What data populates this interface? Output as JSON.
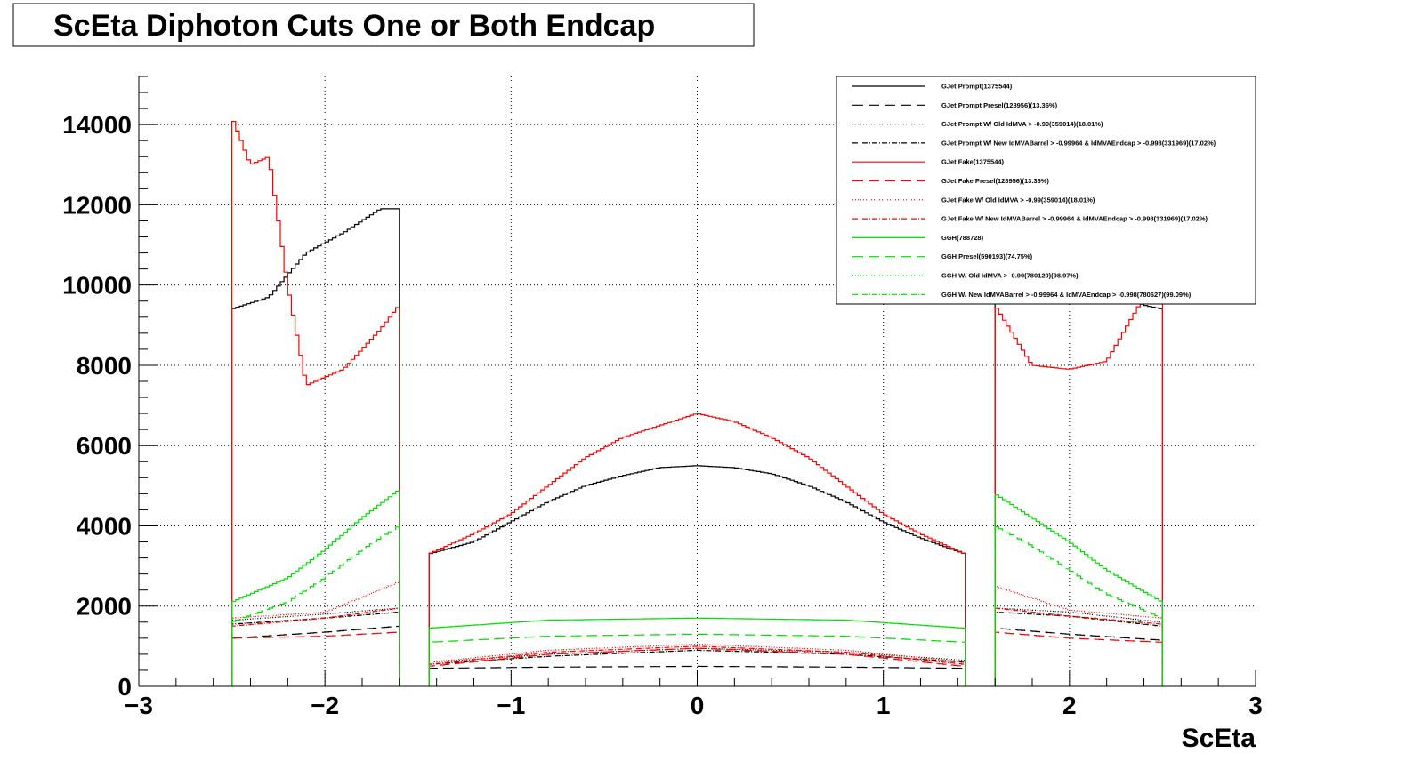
{
  "chart_data": {
    "type": "line",
    "title": "ScEta Diphoton Cuts One or Both Endcap",
    "xlabel": "ScEta",
    "ylabel": "",
    "xlim": [
      -3,
      3
    ],
    "ylim": [
      0,
      15200
    ],
    "grid": true,
    "legend_position": "top-right",
    "x_ticks": [
      -3,
      -2,
      -1,
      0,
      1,
      2,
      3
    ],
    "x_tick_labels": [
      "−3",
      "−2",
      "−1",
      "0",
      "1",
      "2",
      "3"
    ],
    "y_ticks": [
      0,
      2000,
      4000,
      6000,
      8000,
      10000,
      12000,
      14000
    ],
    "y_tick_labels": [
      "0",
      "2000",
      "4000",
      "6000",
      "8000",
      "10000",
      "12000",
      "14000"
    ],
    "series": [
      {
        "name": "GJet Prompt(1375544)",
        "color": "#000000",
        "dash": "solid",
        "endcap_left": [
          [
            -2.5,
            9400
          ],
          [
            -2.3,
            9700
          ],
          [
            -2.1,
            10800
          ],
          [
            -1.9,
            11300
          ],
          [
            -1.7,
            11900
          ],
          [
            -1.6,
            11900
          ]
        ],
        "barrel": [
          [
            -1.44,
            3300
          ],
          [
            -1.2,
            3600
          ],
          [
            -1.0,
            4100
          ],
          [
            -0.8,
            4600
          ],
          [
            -0.6,
            5000
          ],
          [
            -0.4,
            5250
          ],
          [
            -0.2,
            5450
          ],
          [
            0.0,
            5500
          ],
          [
            0.2,
            5450
          ],
          [
            0.4,
            5300
          ],
          [
            0.6,
            5000
          ],
          [
            0.8,
            4600
          ],
          [
            1.0,
            4100
          ],
          [
            1.2,
            3700
          ],
          [
            1.44,
            3300
          ]
        ],
        "endcap_right": [
          [
            1.6,
            10500
          ],
          [
            1.8,
            10600
          ],
          [
            2.0,
            10300
          ],
          [
            2.2,
            10000
          ],
          [
            2.4,
            9500
          ],
          [
            2.5,
            9400
          ]
        ]
      },
      {
        "name": "GJet Prompt Presel(128956)(13.36%)",
        "color": "#000000",
        "dash": "dashed",
        "endcap_left": [
          [
            -2.5,
            1200
          ],
          [
            -2.0,
            1350
          ],
          [
            -1.6,
            1500
          ]
        ],
        "barrel": [
          [
            -1.44,
            450
          ],
          [
            -0.8,
            480
          ],
          [
            0.0,
            500
          ],
          [
            0.8,
            480
          ],
          [
            1.44,
            450
          ]
        ],
        "endcap_right": [
          [
            1.6,
            1450
          ],
          [
            2.0,
            1300
          ],
          [
            2.5,
            1150
          ]
        ]
      },
      {
        "name": "GJet Prompt W/ Old IdMVA > -0.99(359014)(18.01%)",
        "color": "#000000",
        "dash": "dotted",
        "endcap_left": [
          [
            -2.5,
            1650
          ],
          [
            -2.0,
            1800
          ],
          [
            -1.6,
            1950
          ]
        ],
        "barrel": [
          [
            -1.44,
            600
          ],
          [
            -0.8,
            800
          ],
          [
            0.0,
            950
          ],
          [
            0.8,
            850
          ],
          [
            1.44,
            650
          ]
        ],
        "endcap_right": [
          [
            1.6,
            1950
          ],
          [
            2.0,
            1850
          ],
          [
            2.5,
            1600
          ]
        ]
      },
      {
        "name": "GJet Prompt W/ New IdMVABarrel > -0.99964 & IdMVAEndcap > -0.998(331969)(17.02%)",
        "color": "#000000",
        "dash": "dashdot",
        "endcap_left": [
          [
            -2.5,
            1550
          ],
          [
            -2.0,
            1700
          ],
          [
            -1.6,
            1850
          ]
        ],
        "barrel": [
          [
            -1.44,
            550
          ],
          [
            -0.8,
            750
          ],
          [
            0.0,
            900
          ],
          [
            0.8,
            800
          ],
          [
            1.44,
            600
          ]
        ],
        "endcap_right": [
          [
            1.6,
            1850
          ],
          [
            2.0,
            1750
          ],
          [
            2.5,
            1500
          ]
        ]
      },
      {
        "name": "GJet Fake(1375544)",
        "color": "#ff0000",
        "dash": "solid",
        "endcap_left": [
          [
            -2.5,
            14200
          ],
          [
            -2.4,
            13000
          ],
          [
            -2.3,
            13200
          ],
          [
            -2.2,
            10000
          ],
          [
            -2.1,
            7500
          ],
          [
            -1.9,
            7900
          ],
          [
            -1.7,
            8900
          ],
          [
            -1.6,
            9500
          ]
        ],
        "barrel": [
          [
            -1.44,
            3300
          ],
          [
            -1.2,
            3800
          ],
          [
            -1.0,
            4300
          ],
          [
            -0.8,
            5000
          ],
          [
            -0.6,
            5700
          ],
          [
            -0.4,
            6200
          ],
          [
            -0.2,
            6500
          ],
          [
            0.0,
            6800
          ],
          [
            0.2,
            6600
          ],
          [
            0.4,
            6200
          ],
          [
            0.6,
            5700
          ],
          [
            0.8,
            5000
          ],
          [
            1.0,
            4300
          ],
          [
            1.2,
            3800
          ],
          [
            1.44,
            3300
          ]
        ],
        "endcap_right": [
          [
            1.6,
            9500
          ],
          [
            1.8,
            8000
          ],
          [
            2.0,
            7900
          ],
          [
            2.2,
            8100
          ],
          [
            2.4,
            9700
          ],
          [
            2.5,
            10000
          ]
        ]
      },
      {
        "name": "GJet Fake Presel(128956)(13.36%)",
        "color": "#ff0000",
        "dash": "dashed",
        "endcap_left": [
          [
            -2.5,
            1200
          ],
          [
            -2.0,
            1250
          ],
          [
            -1.6,
            1350
          ]
        ],
        "barrel": [
          [
            -1.44,
            500
          ],
          [
            -0.8,
            800
          ],
          [
            0.0,
            950
          ],
          [
            0.8,
            800
          ],
          [
            1.44,
            500
          ]
        ],
        "endcap_right": [
          [
            1.6,
            1350
          ],
          [
            2.0,
            1200
          ],
          [
            2.5,
            1100
          ]
        ]
      },
      {
        "name": "GJet Fake W/ Old IdMVA > -0.99(359014)(18.01%)",
        "color": "#ff0000",
        "dash": "dotted",
        "endcap_left": [
          [
            -2.5,
            1700
          ],
          [
            -2.0,
            1850
          ],
          [
            -1.6,
            2600
          ]
        ],
        "barrel": [
          [
            -1.44,
            600
          ],
          [
            -0.8,
            900
          ],
          [
            0.0,
            1050
          ],
          [
            0.8,
            900
          ],
          [
            1.44,
            600
          ]
        ],
        "endcap_right": [
          [
            1.6,
            2500
          ],
          [
            2.0,
            1900
          ],
          [
            2.5,
            1700
          ]
        ]
      },
      {
        "name": "GJet Fake W/ New IdMVABarrel > -0.99964 & IdMVAEndcap > -0.998(331969)(17.02%)",
        "color": "#ff0000",
        "dash": "dashdot",
        "endcap_left": [
          [
            -2.5,
            1500
          ],
          [
            -2.0,
            1700
          ],
          [
            -1.6,
            1950
          ]
        ],
        "barrel": [
          [
            -1.44,
            550
          ],
          [
            -0.8,
            850
          ],
          [
            0.0,
            1000
          ],
          [
            0.8,
            850
          ],
          [
            1.44,
            550
          ]
        ],
        "endcap_right": [
          [
            1.6,
            1950
          ],
          [
            2.0,
            1750
          ],
          [
            2.5,
            1550
          ]
        ]
      },
      {
        "name": "GGH(788728)",
        "color": "#00dd00",
        "dash": "solid",
        "endcap_left": [
          [
            -2.5,
            2100
          ],
          [
            -2.2,
            2700
          ],
          [
            -2.0,
            3400
          ],
          [
            -1.8,
            4200
          ],
          [
            -1.6,
            4900
          ]
        ],
        "barrel": [
          [
            -1.44,
            1450
          ],
          [
            -0.8,
            1650
          ],
          [
            0.0,
            1700
          ],
          [
            0.8,
            1650
          ],
          [
            1.44,
            1450
          ]
        ],
        "endcap_right": [
          [
            1.6,
            4800
          ],
          [
            1.8,
            4200
          ],
          [
            2.0,
            3600
          ],
          [
            2.2,
            2900
          ],
          [
            2.5,
            2100
          ]
        ]
      },
      {
        "name": "GGH Presel(590193)(74.75%)",
        "color": "#00dd00",
        "dash": "dashed",
        "endcap_left": [
          [
            -2.5,
            1600
          ],
          [
            -2.2,
            2100
          ],
          [
            -2.0,
            2700
          ],
          [
            -1.8,
            3400
          ],
          [
            -1.6,
            4000
          ]
        ],
        "barrel": [
          [
            -1.44,
            1100
          ],
          [
            -0.8,
            1250
          ],
          [
            0.0,
            1300
          ],
          [
            0.8,
            1250
          ],
          [
            1.44,
            1100
          ]
        ],
        "endcap_right": [
          [
            1.6,
            4000
          ],
          [
            1.8,
            3500
          ],
          [
            2.0,
            2900
          ],
          [
            2.2,
            2300
          ],
          [
            2.5,
            1700
          ]
        ]
      },
      {
        "name": "GGH W/ Old IdMVA > -0.99(780120)(98.97%)",
        "color": "#00dd00",
        "dash": "dotted",
        "endcap_left": [],
        "barrel": [],
        "endcap_right": []
      },
      {
        "name": "GGH W/ New IdMVABarrel > -0.99964 & IdMVAEndcap > -0.998(780627)(99.09%)",
        "color": "#00dd00",
        "dash": "dashdot",
        "endcap_left": [],
        "barrel": [],
        "endcap_right": []
      }
    ]
  }
}
